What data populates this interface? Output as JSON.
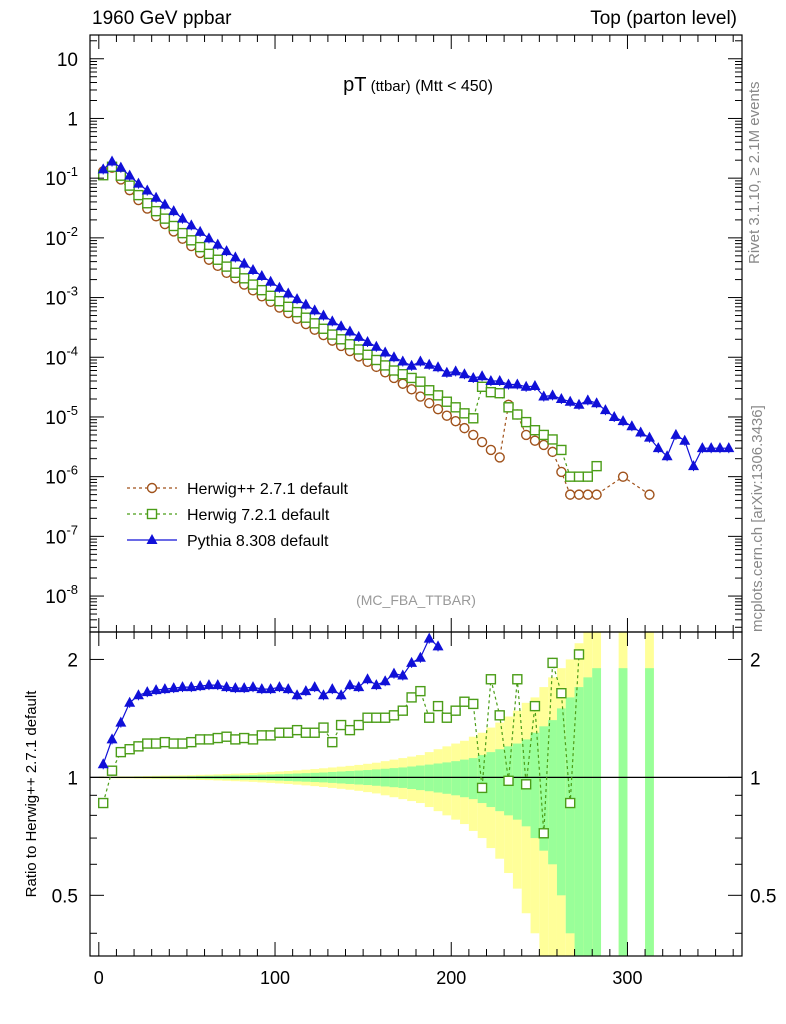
{
  "header": {
    "left": "1960 GeV ppbar",
    "right": "Top (parton level)"
  },
  "side_labels": {
    "rivet": "Rivet 3.1.10, ≥ 2.1M events",
    "mcplots": "mcplots.cern.ch [arXiv:1306.3436]"
  },
  "chart_data": [
    {
      "type": "line",
      "panel": "main",
      "title": "pT (ttbar) (Mtt < 450)",
      "title_parts": [
        "pT",
        "(ttbar)",
        "(Mtt < 450)"
      ],
      "watermark": "(MC_FBA_TTBAR)",
      "yscale": "log",
      "xlim": [
        -5,
        365
      ],
      "ylim": [
        2.5e-09,
        25
      ],
      "ytick_labels": [
        "10^-8",
        "10^-7",
        "10^-6",
        "10^-5",
        "10^-4",
        "10^-3",
        "10^-2",
        "10^-1",
        "1",
        "10"
      ],
      "legend": "bottom-left",
      "series": [
        {
          "name": "Herwig++ 2.7.1 default",
          "color": "#a0521b",
          "marker": "circle",
          "x": [
            2.5,
            7.5,
            12.5,
            17.5,
            22.5,
            27.5,
            32.5,
            37.5,
            42.5,
            47.5,
            52.5,
            57.5,
            62.5,
            67.5,
            72.5,
            77.5,
            82.5,
            87.5,
            92.5,
            97.5,
            102.5,
            107.5,
            112.5,
            117.5,
            122.5,
            127.5,
            132.5,
            137.5,
            142.5,
            147.5,
            152.5,
            157.5,
            162.5,
            167.5,
            172.5,
            177.5,
            182.5,
            187.5,
            192.5,
            197.5,
            202.5,
            207.5,
            212.5,
            217.5,
            222.5,
            227.5,
            232.5,
            237.5,
            242.5,
            247.5,
            252.5,
            257.5,
            262.5,
            267.5,
            272.5,
            277.5,
            282.5,
            297.5,
            312.5
          ],
          "y": [
            0.13,
            0.15,
            0.095,
            0.063,
            0.043,
            0.031,
            0.023,
            0.017,
            0.0128,
            0.0097,
            0.0073,
            0.0056,
            0.0043,
            0.0034,
            0.0026,
            0.0021,
            0.00165,
            0.00132,
            0.00105,
            0.00085,
            0.00068,
            0.00055,
            0.00044,
            0.00036,
            0.00029,
            0.000235,
            0.00019,
            0.000155,
            0.000127,
            0.000103,
            8.4e-05,
            6.9e-05,
            5.6e-05,
            4.5e-05,
            3.6e-05,
            2.9e-05,
            2.2e-05,
            1.7e-05,
            1.35e-05,
            1.05e-05,
            8.5e-06,
            6.5e-06,
            5e-06,
            3.8e-06,
            2.8e-06,
            2.1e-06,
            1.6e-05,
            1.1e-05,
            5e-06,
            4e-06,
            3.4e-06,
            2.6e-06,
            1.2e-06,
            5e-07,
            5e-07,
            5e-07,
            5e-07,
            1e-06,
            5e-07
          ]
        },
        {
          "name": "Herwig 7.2.1 default",
          "color": "#4b9d18",
          "marker": "square",
          "x": [
            2.5,
            7.5,
            12.5,
            17.5,
            22.5,
            27.5,
            32.5,
            37.5,
            42.5,
            47.5,
            52.5,
            57.5,
            62.5,
            67.5,
            72.5,
            77.5,
            82.5,
            87.5,
            92.5,
            97.5,
            102.5,
            107.5,
            112.5,
            117.5,
            122.5,
            127.5,
            132.5,
            137.5,
            142.5,
            147.5,
            152.5,
            157.5,
            162.5,
            167.5,
            172.5,
            177.5,
            182.5,
            187.5,
            192.5,
            197.5,
            202.5,
            207.5,
            212.5,
            217.5,
            222.5,
            227.5,
            232.5,
            237.5,
            242.5,
            247.5,
            252.5,
            257.5,
            262.5,
            267.5,
            272.5,
            277.5,
            282.5
          ],
          "y": [
            0.112,
            0.155,
            0.11,
            0.075,
            0.052,
            0.038,
            0.028,
            0.021,
            0.0158,
            0.012,
            0.0091,
            0.007,
            0.0054,
            0.0043,
            0.0033,
            0.0026,
            0.0021,
            0.00165,
            0.00133,
            0.00107,
            0.00087,
            0.0007,
            0.00057,
            0.00046,
            0.00037,
            0.0003,
            0.00024,
            0.0002,
            0.000165,
            0.000135,
            0.00011,
            9e-05,
            7.3e-05,
            6e-05,
            5.2e-05,
            4.5e-05,
            3.9e-05,
            2.8e-05,
            2.3e-05,
            1.8e-05,
            1.45e-05,
            1.15e-05,
            9.5e-06,
            3.2e-05,
            2.6e-05,
            2.5e-05,
            1.45e-05,
            1.1e-05,
            8.2e-06,
            6e-06,
            5e-06,
            4.2e-06,
            2.8e-06,
            1e-06,
            1e-06,
            1e-06,
            1.5e-06
          ]
        },
        {
          "name": "Pythia 8.308 default",
          "color": "#1010d8",
          "marker": "triangle",
          "x": [
            2.5,
            7.5,
            12.5,
            17.5,
            22.5,
            27.5,
            32.5,
            37.5,
            42.5,
            47.5,
            52.5,
            57.5,
            62.5,
            67.5,
            72.5,
            77.5,
            82.5,
            87.5,
            92.5,
            97.5,
            102.5,
            107.5,
            112.5,
            117.5,
            122.5,
            127.5,
            132.5,
            137.5,
            142.5,
            147.5,
            152.5,
            157.5,
            162.5,
            167.5,
            172.5,
            177.5,
            182.5,
            187.5,
            192.5,
            197.5,
            202.5,
            207.5,
            212.5,
            217.5,
            222.5,
            227.5,
            232.5,
            237.5,
            242.5,
            247.5,
            252.5,
            257.5,
            262.5,
            267.5,
            272.5,
            277.5,
            282.5,
            287.5,
            292.5,
            297.5,
            302.5,
            307.5,
            312.5,
            317.5,
            322.5,
            327.5,
            332.5,
            337.5,
            342.5,
            347.5,
            352.5,
            357.5
          ],
          "y": [
            0.14,
            0.19,
            0.15,
            0.11,
            0.081,
            0.062,
            0.047,
            0.036,
            0.028,
            0.021,
            0.0162,
            0.0126,
            0.0098,
            0.0077,
            0.006,
            0.0047,
            0.0037,
            0.0029,
            0.0023,
            0.00184,
            0.00146,
            0.00117,
            0.00094,
            0.00076,
            0.00061,
            0.0005,
            0.0004,
            0.00033,
            0.00027,
            0.00022,
            0.00018,
            0.00015,
            0.00012,
            0.0001,
            8.5e-05,
            7.2e-05,
            8.5e-05,
            7.5e-05,
            6.8e-05,
            5.5e-05,
            5.8e-05,
            5.2e-05,
            4.5e-05,
            4.8e-05,
            4e-05,
            4e-05,
            3.5e-05,
            3.5e-05,
            3.2e-05,
            3.3e-05,
            2.2e-05,
            2.3e-05,
            2e-05,
            1.8e-05,
            1.6e-05,
            1.9e-05,
            1.7e-05,
            1.3e-05,
            1e-05,
            8.5e-06,
            7e-06,
            5.5e-06,
            4.5e-06,
            3e-06,
            2.2e-06,
            5e-06,
            4e-06,
            1.5e-06,
            3e-06,
            3e-06,
            3e-06,
            3e-06
          ]
        }
      ]
    },
    {
      "type": "line",
      "panel": "ratio",
      "ylabel": "Ratio to Herwig++ 2.7.1 default",
      "yscale": "log",
      "xlim": [
        -5,
        365
      ],
      "ylim": [
        0.35,
        2.35
      ],
      "xtick_labels": [
        "0",
        "100",
        "200",
        "300"
      ],
      "ytick_labels": [
        "0.5",
        "1",
        "2"
      ],
      "reference": 1,
      "bands": {
        "x": [
          2.5,
          7.5,
          12.5,
          17.5,
          22.5,
          27.5,
          32.5,
          37.5,
          42.5,
          47.5,
          52.5,
          57.5,
          62.5,
          67.5,
          72.5,
          77.5,
          82.5,
          87.5,
          92.5,
          97.5,
          102.5,
          107.5,
          112.5,
          117.5,
          122.5,
          127.5,
          132.5,
          137.5,
          142.5,
          147.5,
          152.5,
          157.5,
          162.5,
          167.5,
          172.5,
          177.5,
          182.5,
          187.5,
          192.5,
          197.5,
          202.5,
          207.5,
          212.5,
          217.5,
          222.5,
          227.5,
          232.5,
          237.5,
          242.5,
          247.5,
          252.5,
          257.5,
          262.5,
          267.5,
          272.5,
          277.5,
          282.5,
          297.5,
          312.5
        ],
        "green_half_width": [
          0.003,
          0.003,
          0.003,
          0.003,
          0.004,
          0.004,
          0.005,
          0.005,
          0.006,
          0.006,
          0.007,
          0.008,
          0.009,
          0.01,
          0.011,
          0.012,
          0.013,
          0.014,
          0.016,
          0.017,
          0.019,
          0.021,
          0.023,
          0.025,
          0.027,
          0.029,
          0.032,
          0.035,
          0.038,
          0.041,
          0.044,
          0.048,
          0.052,
          0.056,
          0.06,
          0.066,
          0.072,
          0.078,
          0.085,
          0.092,
          0.1,
          0.11,
          0.12,
          0.14,
          0.16,
          0.18,
          0.2,
          0.22,
          0.25,
          0.3,
          0.35,
          0.4,
          0.5,
          0.6,
          0.7,
          0.8,
          0.9,
          0.9,
          0.9
        ],
        "yellow_half_width": [
          0.005,
          0.005,
          0.006,
          0.006,
          0.007,
          0.008,
          0.009,
          0.01,
          0.011,
          0.012,
          0.013,
          0.015,
          0.016,
          0.018,
          0.02,
          0.022,
          0.024,
          0.026,
          0.029,
          0.032,
          0.035,
          0.038,
          0.042,
          0.046,
          0.05,
          0.055,
          0.06,
          0.065,
          0.07,
          0.076,
          0.083,
          0.09,
          0.1,
          0.11,
          0.12,
          0.13,
          0.14,
          0.16,
          0.18,
          0.2,
          0.22,
          0.24,
          0.27,
          0.3,
          0.34,
          0.38,
          0.43,
          0.48,
          0.55,
          0.6,
          0.7,
          0.8,
          0.9,
          1.0,
          1.2,
          1.4,
          1.6,
          1.6,
          1.6
        ]
      },
      "series": [
        {
          "name": "Herwig 7.2.1 default",
          "color": "#4b9d18",
          "marker": "square",
          "x": [
            2.5,
            7.5,
            12.5,
            17.5,
            22.5,
            27.5,
            32.5,
            37.5,
            42.5,
            47.5,
            52.5,
            57.5,
            62.5,
            67.5,
            72.5,
            77.5,
            82.5,
            87.5,
            92.5,
            97.5,
            102.5,
            107.5,
            112.5,
            117.5,
            122.5,
            127.5,
            132.5,
            137.5,
            142.5,
            147.5,
            152.5,
            157.5,
            162.5,
            167.5,
            172.5,
            177.5,
            182.5,
            187.5,
            192.5,
            197.5,
            202.5,
            207.5,
            212.5,
            217.5,
            222.5,
            227.5,
            232.5,
            237.5,
            242.5,
            247.5,
            252.5,
            257.5,
            262.5,
            267.5,
            272.5
          ],
          "y": [
            0.86,
            1.04,
            1.16,
            1.18,
            1.2,
            1.22,
            1.22,
            1.23,
            1.22,
            1.22,
            1.23,
            1.25,
            1.25,
            1.26,
            1.27,
            1.25,
            1.26,
            1.25,
            1.28,
            1.28,
            1.3,
            1.3,
            1.32,
            1.3,
            1.3,
            1.34,
            1.23,
            1.36,
            1.32,
            1.36,
            1.42,
            1.42,
            1.42,
            1.44,
            1.48,
            1.6,
            1.66,
            1.42,
            1.52,
            1.42,
            1.48,
            1.56,
            1.54,
            0.94,
            1.78,
            1.44,
            0.98,
            1.78,
            0.96,
            1.52,
            0.72,
            1.96,
            1.64,
            0.86,
            2.06
          ]
        },
        {
          "name": "Pythia 8.308 default",
          "color": "#1010d8",
          "marker": "triangle",
          "x": [
            2.5,
            7.5,
            12.5,
            17.5,
            22.5,
            27.5,
            32.5,
            37.5,
            42.5,
            47.5,
            52.5,
            57.5,
            62.5,
            67.5,
            72.5,
            77.5,
            82.5,
            87.5,
            92.5,
            97.5,
            102.5,
            107.5,
            112.5,
            117.5,
            122.5,
            127.5,
            132.5,
            137.5,
            142.5,
            147.5,
            152.5,
            157.5,
            162.5,
            167.5,
            172.5,
            177.5,
            182.5,
            187.5,
            192.5
          ],
          "y": [
            1.08,
            1.25,
            1.38,
            1.55,
            1.62,
            1.65,
            1.67,
            1.68,
            1.69,
            1.7,
            1.7,
            1.71,
            1.72,
            1.72,
            1.7,
            1.69,
            1.69,
            1.7,
            1.68,
            1.68,
            1.7,
            1.68,
            1.62,
            1.66,
            1.7,
            1.62,
            1.68,
            1.62,
            1.72,
            1.7,
            1.78,
            1.72,
            1.76,
            1.84,
            1.82,
            1.96,
            2.02,
            2.26,
            2.16
          ]
        }
      ]
    }
  ]
}
